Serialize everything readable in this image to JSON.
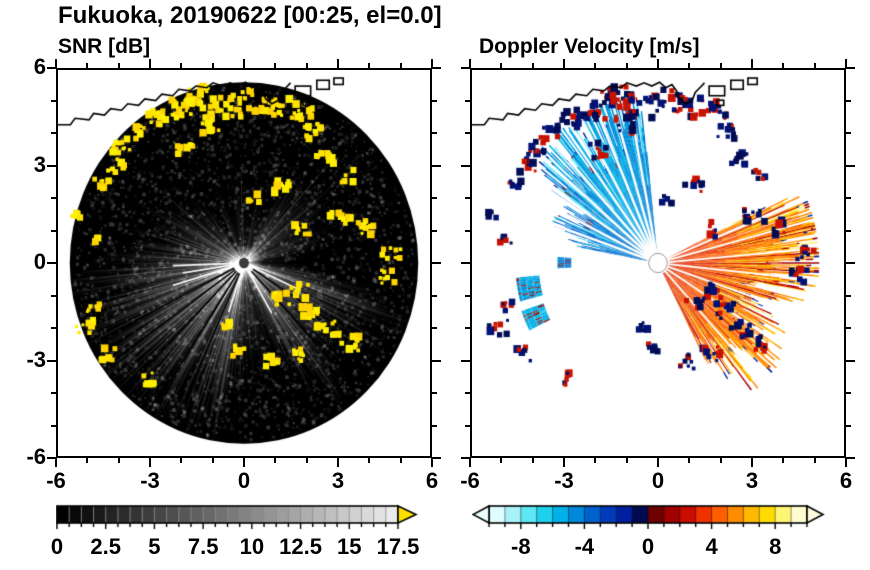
{
  "header": {
    "title": "Fukuoka, 20190622 [00:25, el=0.0]"
  },
  "chart_data": {
    "type": "radar_ppi_pair",
    "suptitle": "Fukuoka, 20190622 [00:25, el=0.0]",
    "coastline": {
      "line": [
        [
          -6.1,
          4.3
        ],
        [
          -5.6,
          4.3
        ],
        [
          -5.45,
          4.5
        ],
        [
          -5.0,
          4.45
        ],
        [
          -4.85,
          4.65
        ],
        [
          -4.5,
          4.6
        ],
        [
          -4.3,
          4.8
        ],
        [
          -3.95,
          4.75
        ],
        [
          -3.75,
          4.95
        ],
        [
          -3.4,
          4.9
        ],
        [
          -3.2,
          5.1
        ],
        [
          -2.85,
          5.05
        ],
        [
          -2.65,
          5.25
        ],
        [
          -2.3,
          5.2
        ],
        [
          -2.1,
          5.4
        ],
        [
          -1.75,
          5.35
        ],
        [
          -1.55,
          5.5
        ],
        [
          -1.2,
          5.45
        ],
        [
          -1.0,
          5.6
        ],
        [
          -0.7,
          5.5
        ],
        [
          -0.45,
          5.6
        ],
        [
          -0.2,
          5.5
        ],
        [
          0.05,
          5.62
        ],
        [
          0.25,
          5.45
        ],
        [
          0.45,
          5.55
        ],
        [
          0.6,
          5.35
        ],
        [
          0.7,
          5.1
        ],
        [
          0.9,
          4.95
        ],
        [
          1.1,
          5.05
        ],
        [
          1.2,
          5.3
        ],
        [
          1.35,
          5.45
        ],
        [
          1.5,
          5.6
        ]
      ],
      "islands": [
        [
          1.65,
          5.2,
          0.5,
          0.3
        ],
        [
          2.35,
          5.4,
          0.4,
          0.28
        ],
        [
          1.9,
          4.9,
          0.22,
          0.16
        ],
        [
          2.9,
          5.55,
          0.3,
          0.2
        ]
      ]
    },
    "clusters": [
      [
        -1.4,
        5.15,
        0.45,
        22
      ],
      [
        -2.1,
        4.75,
        0.4,
        16
      ],
      [
        -2.75,
        4.5,
        0.35,
        14
      ],
      [
        -3.5,
        4.05,
        0.3,
        10
      ],
      [
        -3.95,
        3.6,
        0.3,
        10
      ],
      [
        -0.6,
        4.85,
        0.5,
        20
      ],
      [
        0.3,
        5.05,
        0.45,
        16
      ],
      [
        1.1,
        4.85,
        0.4,
        14
      ],
      [
        1.85,
        4.75,
        0.35,
        12
      ],
      [
        2.2,
        4.1,
        0.3,
        10
      ],
      [
        -1.15,
        4.3,
        0.35,
        12
      ],
      [
        -1.9,
        3.5,
        0.3,
        9
      ],
      [
        -4.15,
        3.0,
        0.3,
        9
      ],
      [
        -4.6,
        2.5,
        0.25,
        7
      ],
      [
        -5.4,
        1.5,
        0.2,
        4
      ],
      [
        -4.9,
        0.7,
        0.2,
        5
      ],
      [
        1.15,
        2.4,
        0.3,
        9
      ],
      [
        0.3,
        2.0,
        0.2,
        5
      ],
      [
        2.6,
        3.3,
        0.3,
        8
      ],
      [
        3.3,
        2.7,
        0.25,
        6
      ],
      [
        3.1,
        1.5,
        0.35,
        11
      ],
      [
        3.9,
        1.1,
        0.3,
        9
      ],
      [
        1.9,
        1.05,
        0.3,
        8
      ],
      [
        4.75,
        0.3,
        0.3,
        9
      ],
      [
        4.6,
        -0.4,
        0.3,
        8
      ],
      [
        1.8,
        -0.85,
        0.3,
        8
      ],
      [
        1.2,
        -1.15,
        0.3,
        8
      ],
      [
        2.15,
        -1.5,
        0.3,
        9
      ],
      [
        2.7,
        -2.05,
        0.35,
        10
      ],
      [
        3.4,
        -2.5,
        0.3,
        9
      ],
      [
        1.75,
        -2.85,
        0.3,
        9
      ],
      [
        0.95,
        -3.05,
        0.3,
        8
      ],
      [
        -0.15,
        -2.7,
        0.25,
        6
      ],
      [
        -0.5,
        -2.0,
        0.2,
        5
      ],
      [
        -5.15,
        -2.0,
        0.3,
        8
      ],
      [
        -4.4,
        -2.85,
        0.3,
        8
      ],
      [
        -4.85,
        -1.35,
        0.25,
        6
      ],
      [
        -3.05,
        -3.6,
        0.25,
        6
      ]
    ],
    "panels": [
      {
        "title": "SNR [dB]",
        "xlim": [
          -6,
          6
        ],
        "ylim": [
          -6,
          6
        ],
        "xticks": [
          -6,
          -3,
          0,
          3,
          6
        ],
        "yticks": [
          6,
          3,
          0,
          -3,
          -6
        ],
        "xtick_labels": [
          "-6",
          "-3",
          "0",
          "3",
          "6"
        ],
        "ytick_labels": [
          "6",
          "3",
          "0",
          "-3",
          "-6"
        ],
        "minor_ticks": [
          -5,
          -4,
          -2,
          -1,
          1,
          2,
          4,
          5
        ],
        "colorbar": {
          "min": 0,
          "max": 17.5,
          "values": [
            0,
            2.5,
            5,
            7.5,
            10,
            12.5,
            15,
            17.5
          ],
          "labels": [
            "0",
            "2.5",
            "5",
            "7.5",
            "10",
            "12.5",
            "15",
            "17.5"
          ],
          "segments": 28,
          "colormap": "grayscale",
          "over_arrow_color": "#ffe100"
        },
        "render": {
          "seed": 1234,
          "disk_radius": 5.62,
          "base_b": 28,
          "base_l": 1.5,
          "bumps": [
            {
              "a": 210,
              "s": 24,
              "b": 190,
              "l": 5.3
            },
            {
              "a": 233,
              "s": 9,
              "b": 150,
              "l": 5.0
            },
            {
              "a": 190,
              "s": 9,
              "b": 115,
              "l": 3.4
            },
            {
              "a": 166,
              "s": 9,
              "b": 85,
              "l": 2.7
            },
            {
              "a": 148,
              "s": 8,
              "b": 90,
              "l": 2.9
            },
            {
              "a": 129,
              "s": 7,
              "b": 75,
              "l": 2.5
            },
            {
              "a": 320,
              "s": 16,
              "b": 150,
              "l": 4.5
            },
            {
              "a": 343,
              "s": 7,
              "b": 115,
              "l": 4.4
            },
            {
              "a": 301,
              "s": 7,
              "b": 100,
              "l": 3.3
            },
            {
              "a": 270,
              "s": 13,
              "b": 100,
              "l": 3.3
            },
            {
              "a": 255,
              "s": 7,
              "b": 125,
              "l": 3.7
            },
            {
              "a": 41,
              "s": 9,
              "b": 95,
              "l": 3.5
            },
            {
              "a": 58,
              "s": 5,
              "b": 75,
              "l": 2.7
            },
            {
              "a": 19,
              "s": 7,
              "b": 85,
              "l": 3.1
            },
            {
              "a": 95,
              "s": 4,
              "b": 60,
              "l": 3.3
            },
            {
              "a": 76,
              "s": 4,
              "b": 55,
              "l": 2.7
            },
            {
              "a": 111,
              "s": 4,
              "b": 55,
              "l": 2.5
            }
          ],
          "dark_rays": [
            {
              "a": 207,
              "l": 5.2
            },
            {
              "a": 216,
              "l": 5.2
            },
            {
              "a": 226,
              "l": 5.2
            },
            {
              "a": 237,
              "l": 5.2
            },
            {
              "a": 246,
              "l": 4.6
            },
            {
              "a": 313,
              "l": 4.4
            },
            {
              "a": 327,
              "l": 4.4
            }
          ],
          "bright_rays": [
            {
              "a": 182,
              "l": 2.3
            },
            {
              "a": 189,
              "l": 2.0
            },
            {
              "a": 197,
              "l": 2.4
            },
            {
              "a": 252,
              "l": 1.6
            },
            {
              "a": 300,
              "l": 1.8
            },
            {
              "a": 335,
              "l": 2.0
            }
          ],
          "clutter_colors": [
            "#ffe400",
            "#ffd400",
            "#fff000"
          ]
        }
      },
      {
        "title": "Doppler Velocity [m/s]",
        "xlim": [
          -6,
          6
        ],
        "ylim": [
          -6,
          6
        ],
        "xticks": [
          -6,
          -3,
          0,
          3,
          6
        ],
        "yticks": [
          6,
          3,
          0,
          -3,
          -6
        ],
        "xtick_labels": [
          "-6",
          "-3",
          "0",
          "3",
          "6"
        ],
        "ytick_labels": [
          "6",
          "3",
          "0",
          "-3",
          "-6"
        ],
        "minor_ticks": [
          -5,
          -4,
          -2,
          -1,
          1,
          2,
          4,
          5
        ],
        "colorbar": {
          "min": -10,
          "max": 10,
          "values": [
            -8,
            -4,
            0,
            4,
            8
          ],
          "labels": [
            "-8",
            "-4",
            "0",
            "4",
            "8"
          ],
          "segments": 20,
          "colors": [
            "#dffcff",
            "#a8f2f8",
            "#5fe6f4",
            "#1ed0ee",
            "#00b0e6",
            "#0089da",
            "#0061cc",
            "#003cba",
            "#0020a0",
            "#000a50",
            "#6f0000",
            "#a00000",
            "#c90d00",
            "#ef3300",
            "#ff5f00",
            "#ff8c00",
            "#ffb800",
            "#ffdc00",
            "#fff575",
            "#fffccf"
          ],
          "under_arrow_color": "#eaffff",
          "over_arrow_color": "#fffde0"
        },
        "render": {
          "seed": 99,
          "blue_fan": {
            "a0": 96,
            "a1": 169,
            "step": 0.45,
            "len_base": 1.9,
            "len_bumps": [
              {
                "a": 116,
                "s": 17,
                "l": 2.6
              },
              {
                "a": 140,
                "s": 10,
                "l": 1.1
              },
              {
                "a": 102,
                "s": 5,
                "l": 1.7
              },
              {
                "a": 160,
                "s": 6,
                "l": 0.7
              }
            ],
            "v_base": -4.0,
            "v_bumps": [
              {
                "a": 121,
                "s": 13,
                "dv": -1.4
              }
            ],
            "streak_prob": 0.22,
            "streak_dv": -2.8,
            "skip_prob": 0.05,
            "tip_fringe_prob": 0.33
          },
          "orange_fan": {
            "a0": -63,
            "a1": 27,
            "step": 0.45,
            "len_base": 1.8,
            "len_bumps": [
              {
                "a": 7,
                "s": 20,
                "l": 3.0
              },
              {
                "a": -37,
                "s": 13,
                "l": 1.8
              },
              {
                "a": -55,
                "s": 8,
                "l": 1.3
              },
              {
                "a": 20,
                "s": 5,
                "l": 0.6
              }
            ],
            "v_base": 3.4,
            "v_slope": 2.5,
            "streak_prob": 0.16,
            "streak_v": 2.0,
            "yellow_prob": 0.13,
            "yellow_dv": 2.6,
            "skip_prob": 0.04,
            "tip_fringe_prob": 0.33
          },
          "patches": [
            {
              "a0": 186,
              "a1": 195,
              "r0": 3.85,
              "r1": 4.6,
              "v": -5.2
            },
            {
              "a0": 199,
              "a1": 207,
              "r0": 3.9,
              "r1": 4.65,
              "v": -5.6
            },
            {
              "a0": 177,
              "a1": 183,
              "r0": 2.8,
              "r1": 3.25,
              "v": -4.2
            }
          ],
          "blue_gaps": [
            100.5,
            106.5,
            112.5,
            119,
            125.5,
            132,
            138.5,
            146,
            153,
            160.5
          ],
          "orange_gaps": [
            -48,
            -33,
            -19,
            -6,
            5,
            15,
            23
          ],
          "speckle_colors": [
            "#001274",
            "#000c54",
            "#c81200"
          ]
        }
      }
    ]
  }
}
